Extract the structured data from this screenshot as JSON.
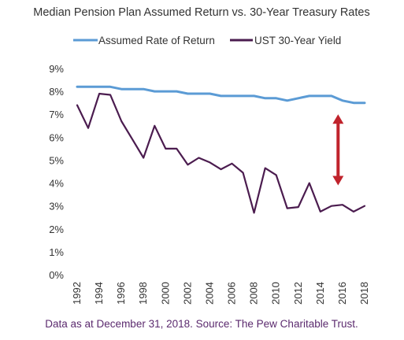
{
  "chart_data": {
    "type": "line",
    "title": "Median Pension Plan Assumed Return vs. 30-Year Treasury Rates",
    "xlabel": "",
    "ylabel": "",
    "x": [
      1992,
      1993,
      1994,
      1995,
      1996,
      1997,
      1998,
      1999,
      2000,
      2001,
      2002,
      2003,
      2004,
      2005,
      2006,
      2007,
      2008,
      2009,
      2010,
      2011,
      2012,
      2013,
      2014,
      2015,
      2016,
      2017,
      2018
    ],
    "x_tick_labels": [
      "1992",
      "1994",
      "1996",
      "1998",
      "2000",
      "2002",
      "2004",
      "2006",
      "2008",
      "2010",
      "2012",
      "2014",
      "2016",
      "2018"
    ],
    "y_tick_labels": [
      "0%",
      "1%",
      "2%",
      "3%",
      "4%",
      "5%",
      "6%",
      "7%",
      "8%",
      "9%"
    ],
    "ylim": [
      0,
      9
    ],
    "grid": false,
    "legend_position": "top-left",
    "series": [
      {
        "name": "Assumed Rate of Return",
        "color": "#5b9bd5",
        "values": [
          8.2,
          8.2,
          8.2,
          8.2,
          8.1,
          8.1,
          8.1,
          8.0,
          8.0,
          8.0,
          7.9,
          7.9,
          7.9,
          7.8,
          7.8,
          7.8,
          7.8,
          7.7,
          7.7,
          7.6,
          7.7,
          7.8,
          7.8,
          7.8,
          7.6,
          7.5,
          7.5
        ]
      },
      {
        "name": "UST 30-Year Yield",
        "color": "#4b1c4f",
        "values": [
          7.4,
          6.4,
          7.9,
          7.85,
          6.7,
          5.9,
          5.1,
          6.5,
          5.5,
          5.5,
          4.8,
          5.1,
          4.9,
          4.6,
          4.85,
          4.45,
          2.7,
          4.65,
          4.35,
          2.9,
          2.95,
          4.0,
          2.75,
          3.0,
          3.05,
          2.75,
          3.0
        ]
      }
    ],
    "annotation": {
      "type": "double-arrow",
      "x": 2015.6,
      "y_from": 3.9,
      "y_to": 7.0,
      "color": "#c0232c"
    }
  },
  "footer": {
    "source": "Data as at December 31, 2018. Source: The Pew Charitable Trust."
  }
}
